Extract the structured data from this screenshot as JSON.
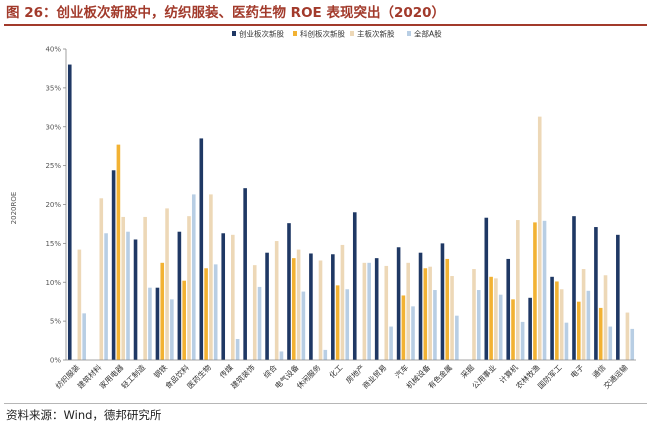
{
  "title": "图 26：创业板次新股中，纺织服装、医药生物 ROE 表现突出（2020）",
  "source": "资料来源：Wind，德邦研究所",
  "colors": [
    "#1f3864",
    "#f2b233",
    "#edd8b7",
    "#b8cee4"
  ],
  "chart_data": {
    "type": "bar",
    "title": "图 26：创业板次新股中，纺织服装、医药生物 ROE 表现突出（2020）",
    "ylabel": "2020ROE",
    "xlabel": "",
    "ylim": [
      0,
      40
    ],
    "yticks": [
      0,
      5,
      10,
      15,
      20,
      25,
      30,
      35,
      40
    ],
    "ytick_labels": [
      "0%",
      "5%",
      "10%",
      "15%",
      "20%",
      "25%",
      "30%",
      "35%",
      "40%"
    ],
    "legend_position": "top-right",
    "grid": false,
    "categories": [
      "纺织服装",
      "建筑材料",
      "家用电器",
      "轻工制造",
      "钢铁",
      "食品饮料",
      "医药生物",
      "传媒",
      "建筑装饰",
      "综合",
      "电气设备",
      "休闲服务",
      "化工",
      "房地产",
      "商业贸易",
      "汽车",
      "机械设备",
      "有色金属",
      "采掘",
      "公用事业",
      "计算机",
      "农林牧渔",
      "国防军工",
      "电子",
      "通信",
      "交通运输"
    ],
    "series": [
      {
        "name": "创业板次新股",
        "values": [
          38.0,
          0,
          24.4,
          15.5,
          9.3,
          16.5,
          28.5,
          16.3,
          22.1,
          13.8,
          17.6,
          13.7,
          13.6,
          19.0,
          13.1,
          14.5,
          13.8,
          15.0,
          0,
          18.3,
          13.0,
          8.0,
          10.7,
          18.5,
          17.1,
          16.1
        ]
      },
      {
        "name": "科创板次新股",
        "values": [
          0,
          0,
          27.7,
          0,
          12.5,
          10.2,
          11.8,
          0,
          0,
          0,
          13.1,
          0,
          9.6,
          0,
          0,
          8.3,
          11.8,
          13.0,
          0,
          10.7,
          7.8,
          17.7,
          10.1,
          7.5,
          6.7,
          0
        ]
      },
      {
        "name": "主板次新股",
        "values": [
          14.2,
          20.8,
          18.4,
          18.4,
          19.5,
          18.5,
          21.3,
          16.1,
          12.2,
          15.3,
          14.2,
          12.8,
          14.8,
          12.5,
          12.1,
          12.5,
          12.0,
          10.8,
          11.7,
          10.5,
          18.0,
          31.3,
          9.1,
          11.7,
          10.9,
          6.1
        ]
      },
      {
        "name": "全部A股",
        "values": [
          6.0,
          16.3,
          16.5,
          9.3,
          7.8,
          21.3,
          12.3,
          2.7,
          9.4,
          1.1,
          8.8,
          1.3,
          9.1,
          12.5,
          4.3,
          6.9,
          9.0,
          5.7,
          9.0,
          8.4,
          4.9,
          17.9,
          4.8,
          8.9,
          4.3,
          4.0
        ]
      }
    ]
  }
}
